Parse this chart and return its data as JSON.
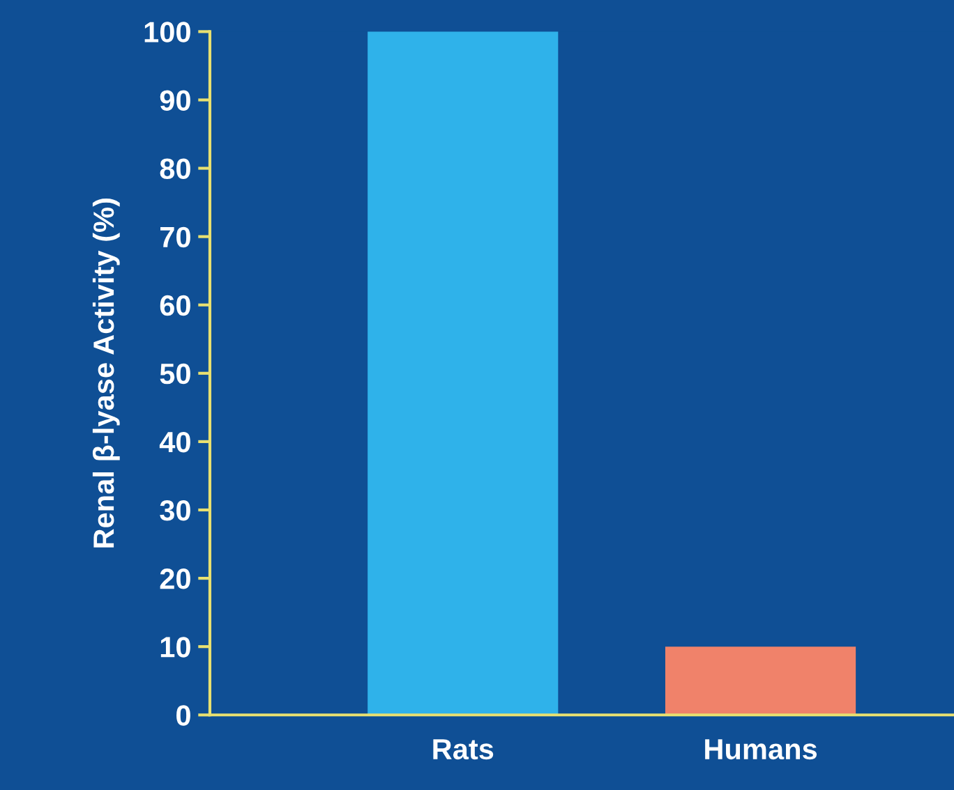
{
  "chart_data": {
    "type": "bar",
    "ylabel": "Renal β-lyase Activity (%)",
    "categories": [
      "Rats",
      "Humans"
    ],
    "values": [
      100,
      10
    ],
    "colors": [
      "#2fb2ea",
      "#f0826a"
    ],
    "ylim": [
      0,
      100
    ],
    "yticks": [
      0,
      10,
      20,
      30,
      40,
      50,
      60,
      70,
      80,
      90,
      100
    ],
    "grid": false,
    "legend": false
  }
}
